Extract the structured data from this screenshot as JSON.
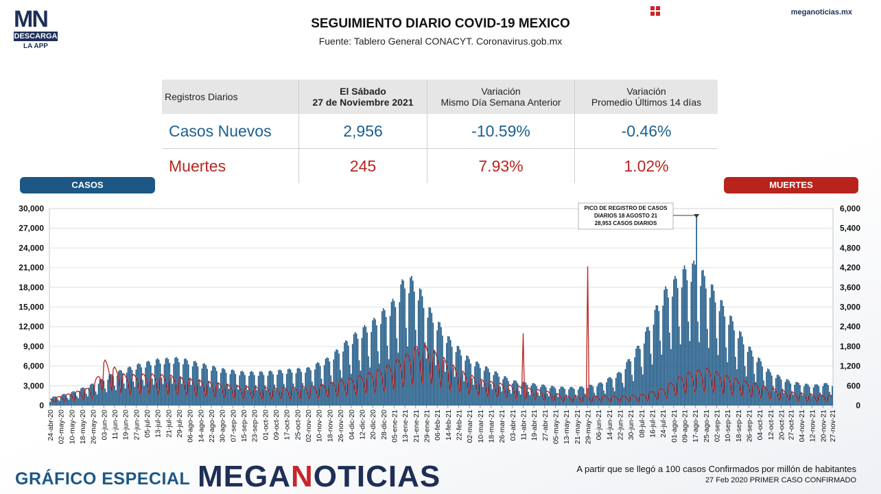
{
  "brand": {
    "logo_mn": "MN",
    "logo_box": "DESCARGA",
    "logo_sub": "LA APP",
    "site": "meganoticias.mx"
  },
  "header": {
    "title": "SEGUIMIENTO DIARIO COVID-19 MEXICO",
    "subtitle": "Fuente: Tablero General CONACYT. Coronavirus.gob.mx"
  },
  "table": {
    "col_label": "Registros Diarios",
    "col_date_line1": "El Sábado",
    "col_date_line2": "27 de Noviembre 2021",
    "col_var1_line1": "Variación",
    "col_var1_line2": "Mismo Día Semana Anterior",
    "col_var2_line1": "Variación",
    "col_var2_line2": "Promedio Últimos 14 días",
    "cases": {
      "label": "Casos Nuevos",
      "value": "2,956",
      "var_week": "-10.59%",
      "var_14d": "-0.46%"
    },
    "deaths": {
      "label": "Muertes",
      "value": "245",
      "var_week": "7.93%",
      "var_14d": "1.02%"
    }
  },
  "pills": {
    "casos": "CASOS",
    "muertes": "MUERTES"
  },
  "colors": {
    "cases": "#1c5785",
    "deaths": "#b7251f",
    "brand_blue": "#1e2f57",
    "brand_red": "#c8262a"
  },
  "chart_data": {
    "type": "bar",
    "x_range": [
      "24-abr-20",
      "27-nov-21"
    ],
    "x_tick_labels": [
      "24-abr-20",
      "02-may-20",
      "10-may-20",
      "18-may-20",
      "26-may-20",
      "03-jun-20",
      "11-jun-20",
      "19-jun-20",
      "27-jun-20",
      "05-jul-20",
      "13-jul-20",
      "21-jul-20",
      "29-jul-20",
      "06-ago-20",
      "14-ago-20",
      "22-ago-20",
      "30-ago-20",
      "07-sep-20",
      "15-sep-20",
      "23-sep-20",
      "01-oct-20",
      "09-oct-20",
      "17-oct-20",
      "25-oct-20",
      "02-nov-20",
      "10-nov-20",
      "18-nov-20",
      "26-nov-20",
      "04-dic-20",
      "12-dic-20",
      "20-dic-20",
      "28-dic-20",
      "05-ene-21",
      "13-ene-21",
      "21-ene-21",
      "29-ene-21",
      "06-feb-21",
      "14-feb-21",
      "22-feb-21",
      "02-mar-21",
      "10-mar-21",
      "18-mar-21",
      "26-mar-21",
      "03-abr-21",
      "11-abr-21",
      "19-abr-21",
      "27-abr-21",
      "05-may-21",
      "13-may-21",
      "21-may-21",
      "29-may-21",
      "06-jun-21",
      "14-jun-21",
      "22-jun-21",
      "30-jun-21",
      "08-jul-21",
      "16-jul-21",
      "24-jul-21",
      "01-ago-21",
      "09-ago-21",
      "17-ago-21",
      "25-ago-21",
      "02-sep-21",
      "10-sep-21",
      "18-sep-21",
      "26-sep-21",
      "04-oct-21",
      "12-oct-21",
      "20-oct-21",
      "27-oct-21",
      "04-nov-21",
      "12-nov-21",
      "20-nov-21",
      "27-nov-21"
    ],
    "y_left": {
      "min": 0,
      "max": 30000,
      "ticks": [
        "0",
        "3,000",
        "6,000",
        "9,000",
        "12,000",
        "15,000",
        "18,000",
        "21,000",
        "24,000",
        "27,000",
        "30,000"
      ]
    },
    "y_right": {
      "min": 0,
      "max": 6000,
      "ticks": [
        "0",
        "600",
        "1,200",
        "1,800",
        "2,400",
        "3,000",
        "3,600",
        "4,200",
        "4,800",
        "5,400",
        "6,000"
      ]
    },
    "series": [
      {
        "name": "CASOS",
        "type": "bar",
        "axis": "left",
        "approx_weekly_avg_points": [
          [
            "24-abr-20",
            1000
          ],
          [
            "10-may-20",
            1700
          ],
          [
            "26-may-20",
            2800
          ],
          [
            "11-jun-20",
            4200
          ],
          [
            "27-jun-20",
            5200
          ],
          [
            "13-jul-20",
            5900
          ],
          [
            "29-jul-20",
            6100
          ],
          [
            "14-ago-20",
            5400
          ],
          [
            "30-ago-20",
            4700
          ],
          [
            "15-sep-20",
            4300
          ],
          [
            "01-oct-20",
            4300
          ],
          [
            "17-oct-20",
            4600
          ],
          [
            "02-nov-20",
            4800
          ],
          [
            "18-nov-20",
            6200
          ],
          [
            "04-dic-20",
            8800
          ],
          [
            "20-dic-20",
            10800
          ],
          [
            "05-ene-21",
            13500
          ],
          [
            "13-ene-21",
            16500
          ],
          [
            "21-ene-21",
            16000
          ],
          [
            "29-ene-21",
            13000
          ],
          [
            "14-feb-21",
            8800
          ],
          [
            "02-mar-21",
            6000
          ],
          [
            "18-mar-21",
            4600
          ],
          [
            "03-abr-21",
            3200
          ],
          [
            "19-abr-21",
            2800
          ],
          [
            "05-may-21",
            2400
          ],
          [
            "21-may-21",
            2300
          ],
          [
            "06-jun-21",
            2800
          ],
          [
            "22-jun-21",
            4300
          ],
          [
            "08-jul-21",
            8200
          ],
          [
            "24-jul-21",
            14500
          ],
          [
            "09-ago-21",
            17500
          ],
          [
            "17-ago-21",
            18200
          ],
          [
            "25-ago-21",
            16500
          ],
          [
            "10-sep-21",
            12000
          ],
          [
            "26-sep-21",
            7500
          ],
          [
            "12-oct-21",
            4300
          ],
          [
            "27-oct-21",
            3100
          ],
          [
            "12-nov-21",
            2600
          ],
          [
            "27-nov-21",
            2956
          ]
        ],
        "peak": {
          "date": "18-ago-21",
          "value": 28953
        }
      },
      {
        "name": "MUERTES",
        "type": "line",
        "axis": "right",
        "approx_points": [
          [
            "24-abr-20",
            150
          ],
          [
            "10-may-20",
            300
          ],
          [
            "26-may-20",
            450
          ],
          [
            "03-jun-20",
            1090
          ],
          [
            "19-jun-20",
            720
          ],
          [
            "05-jul-20",
            750
          ],
          [
            "21-jul-20",
            720
          ],
          [
            "06-ago-20",
            640
          ],
          [
            "22-ago-20",
            560
          ],
          [
            "07-sep-20",
            480
          ],
          [
            "23-sep-20",
            440
          ],
          [
            "09-oct-20",
            420
          ],
          [
            "25-oct-20",
            440
          ],
          [
            "10-nov-20",
            480
          ],
          [
            "26-nov-20",
            600
          ],
          [
            "12-dic-20",
            730
          ],
          [
            "28-dic-20",
            900
          ],
          [
            "13-ene-21",
            1200
          ],
          [
            "25-ene-21",
            1500
          ],
          [
            "06-feb-21",
            1250
          ],
          [
            "22-feb-21",
            850
          ],
          [
            "10-mar-21",
            620
          ],
          [
            "26-mar-21",
            520
          ],
          [
            "11-abr-21",
            2200
          ],
          [
            "27-abr-21",
            350
          ],
          [
            "13-may-21",
            230
          ],
          [
            "29-may-21",
            4240
          ],
          [
            "06-jun-21",
            230
          ],
          [
            "22-jun-21",
            220
          ],
          [
            "08-jul-21",
            260
          ],
          [
            "24-jul-21",
            420
          ],
          [
            "09-ago-21",
            760
          ],
          [
            "25-ago-21",
            900
          ],
          [
            "10-sep-21",
            700
          ],
          [
            "26-sep-21",
            560
          ],
          [
            "12-oct-21",
            420
          ],
          [
            "27-oct-21",
            320
          ],
          [
            "12-nov-21",
            260
          ],
          [
            "27-nov-21",
            245
          ]
        ]
      }
    ],
    "annotations": [
      {
        "line1": "PICO DE REGISTRO DE CASOS",
        "line2": "DIARIOS 18 AGOSTO 21",
        "line3": "28,953 CASOS DIARIOS",
        "x": "18-ago-21"
      }
    ],
    "grid": true
  },
  "footer": {
    "left": "GRÁFICO ESPECIAL",
    "brand_a": "MEGA",
    "brand_b": "N",
    "brand_c": "OTICIAS",
    "note1": "A partir que se llegó a 100 casos Confirmados por millón de habitantes",
    "note2": "27 Feb 2020 PRIMER CASO CONFIRMADO"
  }
}
